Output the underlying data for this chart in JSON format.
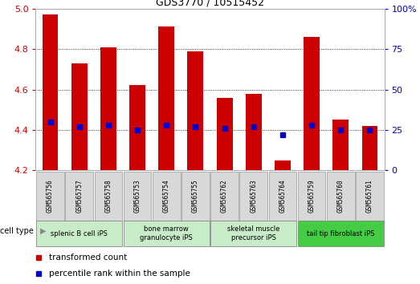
{
  "title": "GDS3770 / 10515452",
  "samples": [
    "GSM565756",
    "GSM565757",
    "GSM565758",
    "GSM565753",
    "GSM565754",
    "GSM565755",
    "GSM565762",
    "GSM565763",
    "GSM565764",
    "GSM565759",
    "GSM565760",
    "GSM565761"
  ],
  "transformed_count": [
    4.97,
    4.73,
    4.81,
    4.62,
    4.91,
    4.79,
    4.56,
    4.58,
    4.25,
    4.86,
    4.45,
    4.42
  ],
  "percentile_rank": [
    30,
    27,
    28,
    25,
    28,
    27,
    26,
    27,
    22,
    28,
    25,
    25
  ],
  "y_min": 4.2,
  "y_max": 5.0,
  "y_ticks": [
    4.2,
    4.4,
    4.6,
    4.8,
    5.0
  ],
  "y2_ticks": [
    0,
    25,
    50,
    75,
    100
  ],
  "bar_color": "#cc0000",
  "dot_color": "#0000cc",
  "bar_width": 0.55,
  "group_ranges": [
    [
      0,
      2
    ],
    [
      3,
      5
    ],
    [
      6,
      8
    ],
    [
      9,
      11
    ]
  ],
  "group_labels": [
    "splenic B cell iPS",
    "bone marrow\ngranulocyte iPS",
    "skeletal muscle\nprecursor iPS",
    "tail tip fibroblast iPS"
  ],
  "group_colors": [
    "#c8ebc8",
    "#c8ebc8",
    "#c8ebc8",
    "#44cc44"
  ],
  "legend_labels": [
    "transformed count",
    "percentile rank within the sample"
  ],
  "legend_colors": [
    "#cc0000",
    "#0000cc"
  ],
  "cell_type_label": "cell type",
  "tick_color_left": "#cc0000",
  "tick_color_right": "#0000cc"
}
